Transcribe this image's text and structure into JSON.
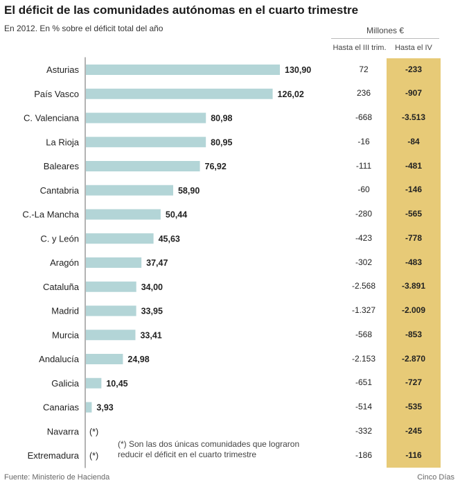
{
  "title": "El déficit de las comunidades autónomas en el cuarto trimestre",
  "subtitle": "En 2012. En % sobre el déficit total del año",
  "table": {
    "group_header": "Millones €",
    "col1_header": "Hasta el III trim.",
    "col2_header": "Hasta el IV",
    "highlight_color": "#e7ca77"
  },
  "note": {
    "line1": "(*) Son las dos únicas comunidades que lograron",
    "line2": "reducir el déficit en el cuarto trimestre"
  },
  "source": "Fuente: Ministerio de Hacienda",
  "credit": "Cinco Días",
  "chart_data": {
    "type": "bar",
    "orientation": "horizontal",
    "bar_color": "#b3d5d7",
    "xlim": [
      0,
      140
    ],
    "categories": [
      "Asturias",
      "País Vasco",
      "C. Valenciana",
      "La Rioja",
      "Baleares",
      "Cantabria",
      "C.-La Mancha",
      "C. y León",
      "Aragón",
      "Cataluña",
      "Madrid",
      "Murcia",
      "Andalucía",
      "Galicia",
      "Canarias",
      "Navarra",
      "Extremadura"
    ],
    "values": [
      130.9,
      126.02,
      80.98,
      80.95,
      76.92,
      58.9,
      50.44,
      45.63,
      37.47,
      34.0,
      33.95,
      33.41,
      24.98,
      10.45,
      3.93,
      null,
      null
    ],
    "labels": [
      "130,90",
      "126,02",
      "80,98",
      "80,95",
      "76,92",
      "58,90",
      "50,44",
      "45,63",
      "37,47",
      "34,00",
      "33,95",
      "33,41",
      "24,98",
      "10,45",
      "3,93",
      "(*)",
      "(*)"
    ],
    "hasta_iii_trim": [
      "72",
      "236",
      "-668",
      "-16",
      "-111",
      "-60",
      "-280",
      "-423",
      "-302",
      "-2.568",
      "-1.327",
      "-568",
      "-2.153",
      "-651",
      "-514",
      "-332",
      "-186"
    ],
    "hasta_iv": [
      "-233",
      "-907",
      "-3.513",
      "-84",
      "-481",
      "-146",
      "-565",
      "-778",
      "-483",
      "-3.891",
      "-2.009",
      "-853",
      "-2.870",
      "-727",
      "-535",
      "-245",
      "-116"
    ]
  }
}
